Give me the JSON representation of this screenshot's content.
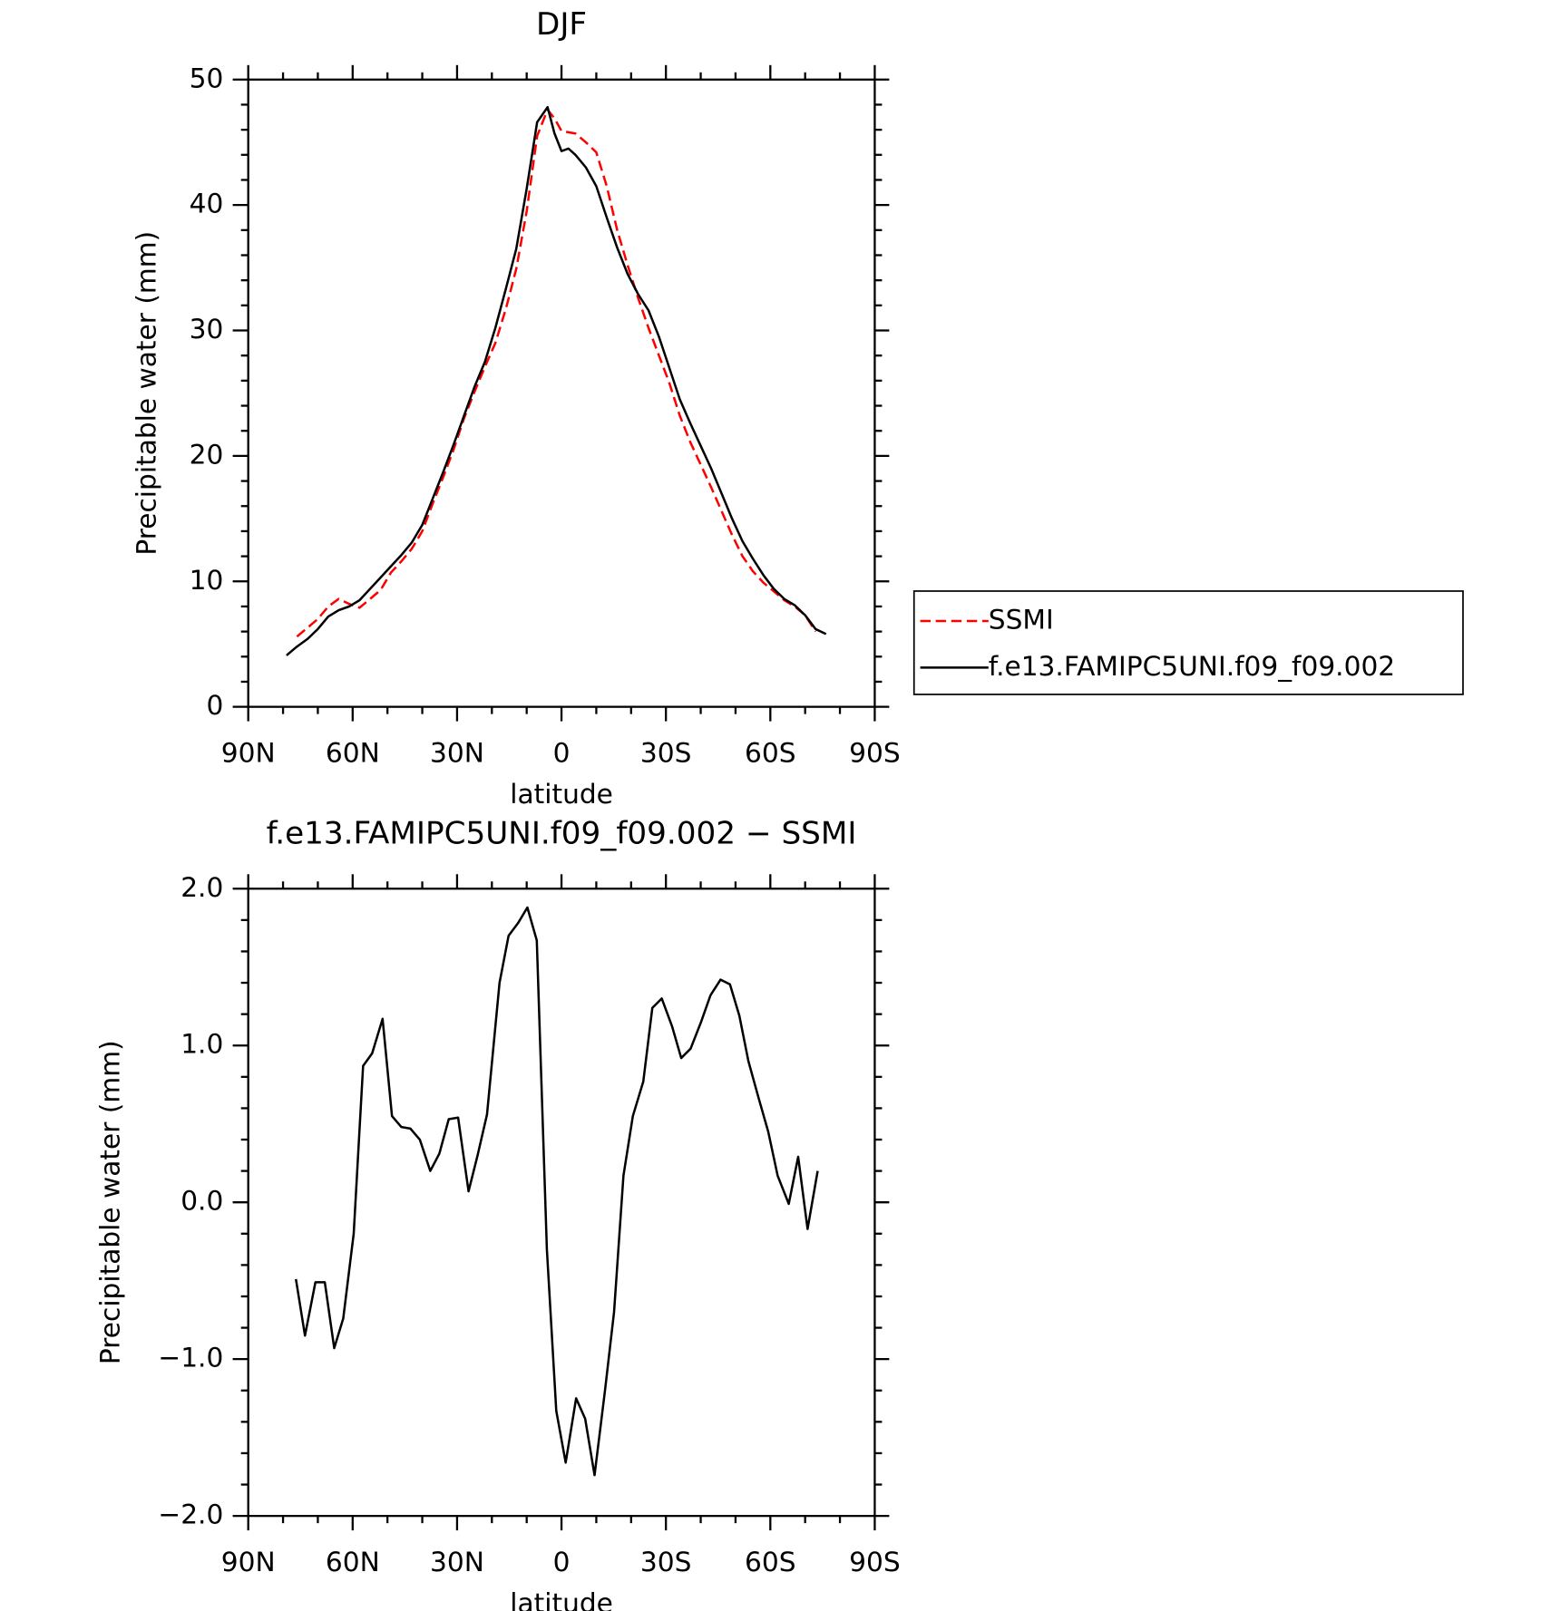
{
  "chart_data": [
    {
      "type": "line",
      "title": "DJF",
      "xlabel": "latitude",
      "ylabel": "Precipitable water (mm)",
      "x": [
        79,
        76,
        73,
        70,
        67,
        64,
        61,
        58,
        55,
        52,
        49,
        46,
        43,
        40,
        37,
        34,
        31,
        28,
        25,
        22,
        19,
        16,
        13,
        10,
        7,
        4,
        2,
        0,
        -2,
        -4,
        -7,
        -10,
        -13,
        -16,
        -19,
        -22,
        -25,
        -28,
        -31,
        -34,
        -37,
        -40,
        -43,
        -46,
        -49,
        -52,
        -55,
        -58,
        -61,
        -64,
        -67,
        -70,
        -73,
        -76
      ],
      "series": [
        {
          "name": "SSMI",
          "color": "#ff0000",
          "dash": "dashed",
          "values": [
            null,
            5.6,
            6.3,
            7.0,
            8.0,
            8.6,
            8.2,
            7.9,
            8.6,
            9.3,
            10.7,
            11.6,
            12.6,
            14.0,
            16.2,
            18.3,
            20.5,
            23.0,
            25.1,
            27.1,
            29.0,
            31.7,
            34.9,
            39.5,
            45.5,
            47.6,
            46.9,
            45.9,
            45.8,
            45.7,
            45.0,
            44.2,
            41.5,
            38.0,
            35.2,
            32.6,
            30.2,
            28.0,
            25.8,
            23.2,
            21.1,
            19.3,
            17.5,
            15.6,
            13.7,
            12.0,
            10.8,
            9.9,
            9.2,
            8.5,
            8.0,
            7.3,
            6.0,
            null
          ]
        },
        {
          "name": "f.e13.FAMIPC5UNI.f09_f09.002",
          "color": "#000000",
          "dash": "solid",
          "values": [
            4.1,
            4.8,
            5.4,
            6.2,
            7.2,
            7.7,
            8.0,
            8.5,
            9.4,
            10.3,
            11.2,
            12.1,
            13.1,
            14.5,
            16.6,
            18.7,
            20.9,
            23.2,
            25.5,
            27.5,
            30.2,
            33.3,
            36.5,
            41.3,
            46.6,
            47.8,
            45.7,
            44.3,
            44.5,
            44.0,
            43.0,
            41.5,
            39.0,
            36.6,
            34.5,
            32.9,
            31.6,
            29.5,
            27.0,
            24.5,
            22.6,
            20.8,
            19.0,
            17.0,
            15.0,
            13.2,
            11.8,
            10.5,
            9.4,
            8.6,
            8.1,
            7.3,
            6.2,
            5.8
          ]
        }
      ],
      "xlim": [
        90,
        -90
      ],
      "xticks": [
        {
          "value": 90,
          "label": "90N"
        },
        {
          "value": 60,
          "label": "60N"
        },
        {
          "value": 30,
          "label": "30N"
        },
        0,
        {
          "value": -30,
          "label": "30S"
        },
        {
          "value": -60,
          "label": "60S"
        },
        {
          "value": -90,
          "label": "90S"
        }
      ],
      "xminorticks": [
        80,
        70,
        50,
        40,
        20,
        10,
        -10,
        -20,
        -40,
        -50,
        -70,
        -80
      ],
      "ylim": [
        0,
        50
      ],
      "yticks": [
        0,
        10,
        20,
        30,
        40,
        50
      ],
      "yminorticks": [
        2,
        4,
        6,
        8,
        12,
        14,
        16,
        18,
        22,
        24,
        26,
        28,
        32,
        34,
        36,
        38,
        42,
        44,
        46,
        48
      ],
      "legend": "right"
    },
    {
      "type": "line",
      "title": "f.e13.FAMIPC5UNI.f09_f09.002 − SSMI",
      "xlabel": "latitude",
      "ylabel": "Precipitable water (mm)",
      "x": [
        76.3,
        73.7,
        70.7,
        68.0,
        65.3,
        62.7,
        59.7,
        57.0,
        54.4,
        51.4,
        48.7,
        46.0,
        43.4,
        40.7,
        37.7,
        35.1,
        32.4,
        29.7,
        26.7,
        24.1,
        21.4,
        17.8,
        15.2,
        12.5,
        9.8,
        7.1,
        4.2,
        1.5,
        -1.2,
        -4.2,
        -6.8,
        -9.5,
        -12.5,
        -15.1,
        -17.8,
        -20.5,
        -23.5,
        -26.1,
        -28.8,
        -31.8,
        -34.4,
        -37.1,
        -40.1,
        -42.8,
        -45.7,
        -48.4,
        -51.1,
        -53.7,
        -56.7,
        -59.4,
        -62.1,
        -65.3,
        -68.0,
        -70.7,
        -73.6
      ],
      "series": [
        {
          "color": "#000000",
          "dash": "solid",
          "values": [
            -0.49,
            -0.85,
            -0.51,
            -0.51,
            -0.93,
            -0.74,
            -0.2,
            0.87,
            0.95,
            1.17,
            0.55,
            0.48,
            0.47,
            0.4,
            0.2,
            0.31,
            0.53,
            0.54,
            0.07,
            0.3,
            0.56,
            1.4,
            1.7,
            1.78,
            1.88,
            1.67,
            -0.3,
            -1.33,
            -1.66,
            -1.25,
            -1.38,
            -1.74,
            -1.2,
            -0.7,
            0.17,
            0.55,
            0.77,
            1.24,
            1.3,
            1.12,
            0.92,
            0.98,
            1.15,
            1.32,
            1.42,
            1.39,
            1.19,
            0.9,
            0.66,
            0.45,
            0.17,
            -0.01,
            0.29,
            -0.17,
            0.2
          ]
        }
      ],
      "xlim": [
        90,
        -90
      ],
      "xticks": [
        {
          "value": 90,
          "label": "90N"
        },
        {
          "value": 60,
          "label": "60N"
        },
        {
          "value": 30,
          "label": "30N"
        },
        0,
        {
          "value": -30,
          "label": "30S"
        },
        {
          "value": -60,
          "label": "60S"
        },
        {
          "value": -90,
          "label": "90S"
        }
      ],
      "xminorticks": [
        80,
        70,
        50,
        40,
        20,
        10,
        -10,
        -20,
        -40,
        -50,
        -70,
        -80
      ],
      "ylim": [
        -2,
        2
      ],
      "yticks": [
        {
          "value": -2,
          "label": "−2.0"
        },
        {
          "value": -1,
          "label": "−1.0"
        },
        {
          "value": 0,
          "label": "0.0"
        },
        {
          "value": 1,
          "label": "1.0"
        },
        {
          "value": 2,
          "label": "2.0"
        }
      ],
      "yminorticks": [
        -1.8,
        -1.6,
        -1.4,
        -1.2,
        -0.8,
        -0.6,
        -0.4,
        -0.2,
        0.2,
        0.4,
        0.6,
        0.8,
        1.2,
        1.4,
        1.6,
        1.8
      ]
    }
  ]
}
